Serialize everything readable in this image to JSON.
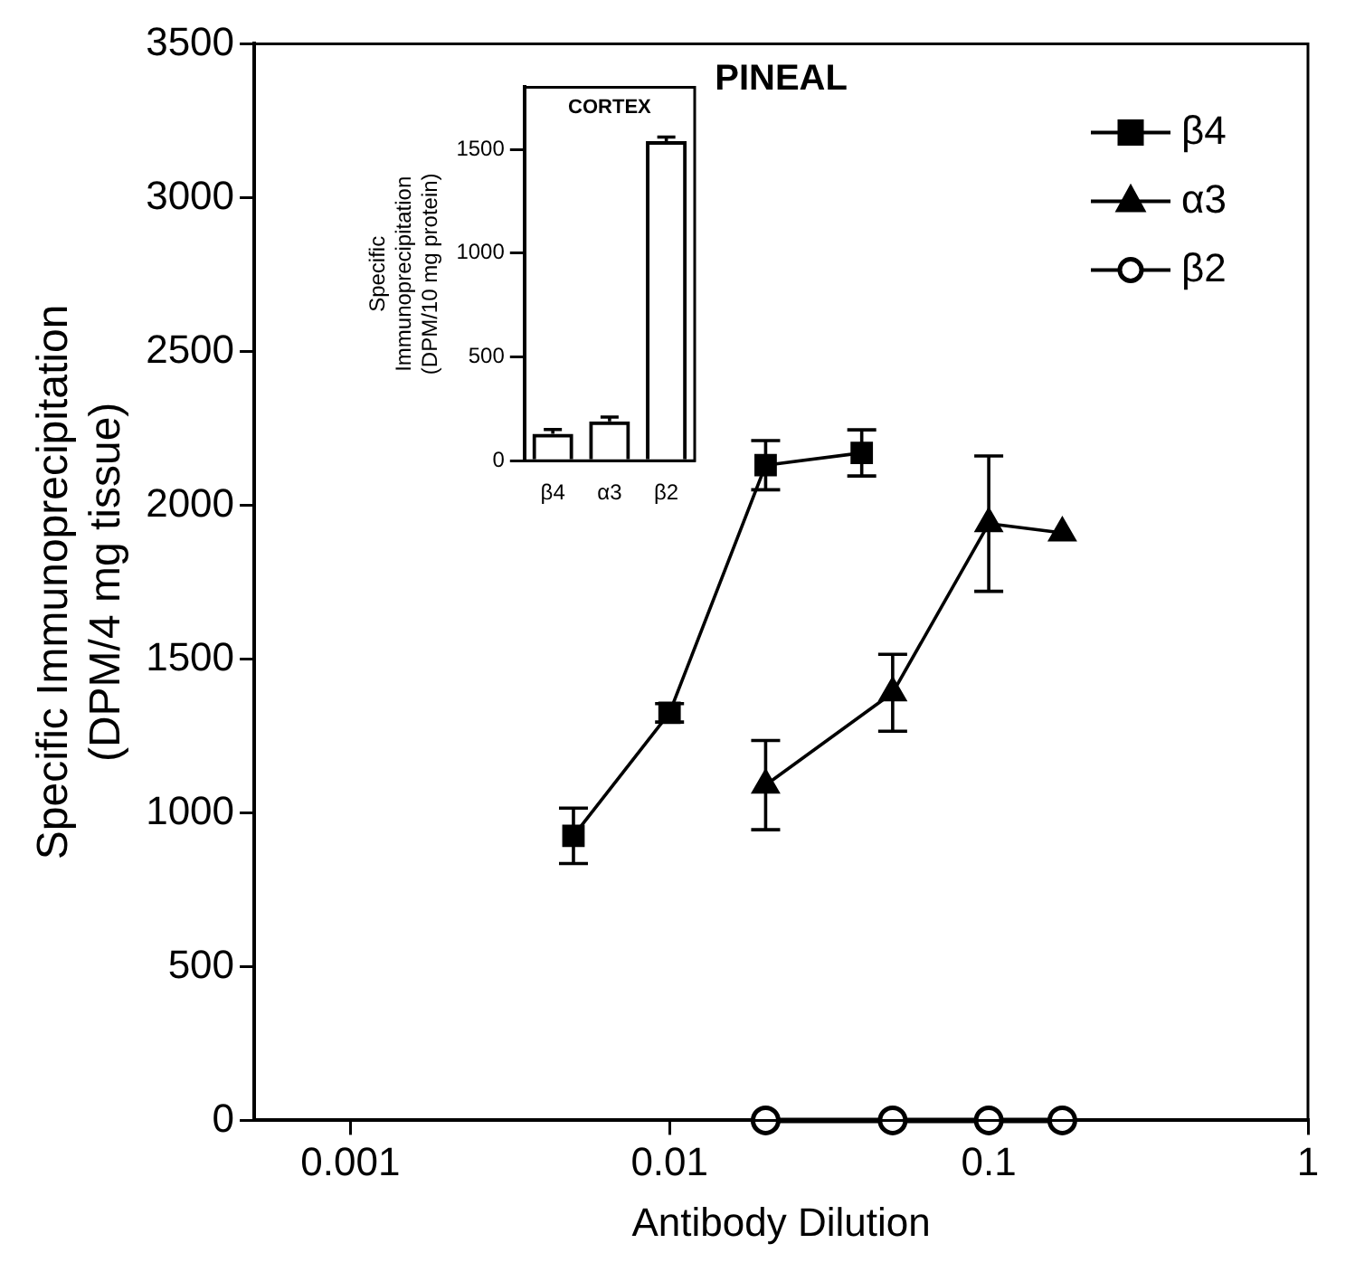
{
  "chart_data": [
    {
      "type": "line",
      "title": "PINEAL",
      "xlabel": "Antibody Dilution",
      "ylabel": "Specific Immunoprecipitation\n(DPM/4 mg tissue)",
      "log": "x",
      "xlim": [
        0.0005,
        1
      ],
      "xticks": [
        0.001,
        0.01,
        0.1,
        1
      ],
      "ylim": [
        0,
        3500
      ],
      "yticks": [
        0,
        500,
        1000,
        1500,
        2000,
        2500,
        3000,
        3500
      ],
      "grid": false,
      "legend": "top right",
      "line_style": "solid",
      "series": [
        {
          "name": "β4",
          "color": "#000000",
          "marker": "square",
          "x": [
            0.005,
            0.01,
            0.02,
            0.04
          ],
          "values": [
            925,
            1325,
            2130,
            2170
          ],
          "errors": [
            90,
            30,
            80,
            75
          ]
        },
        {
          "name": "α3",
          "color": "#000000",
          "marker": "triangle",
          "x": [
            0.02,
            0.05,
            0.1,
            0.17
          ],
          "values": [
            1090,
            1390,
            1940,
            1910
          ],
          "errors": [
            145,
            125,
            220,
            null
          ]
        },
        {
          "name": "β2",
          "color": "#000000",
          "marker": "circle",
          "x": [
            0.02,
            0.05,
            0.1,
            0.17
          ],
          "values": [
            0,
            0,
            0,
            0
          ]
        }
      ]
    },
    {
      "type": "bar",
      "title": "CORTEX",
      "ylabel": "Specific\nImmunoprecipitation\n(DPM/10 mg protein)",
      "categories": [
        "β4",
        "α3",
        "β2"
      ],
      "values": [
        130,
        190,
        1540
      ],
      "errors": [
        [
          130,
          150
        ],
        [
          190,
          210
        ],
        [
          1540,
          1560
        ]
      ],
      "color": "#000000",
      "ylim": [
        0,
        1800
      ],
      "yticks": [
        0,
        500,
        1000,
        1500
      ],
      "grid": false,
      "legend": false
    }
  ]
}
